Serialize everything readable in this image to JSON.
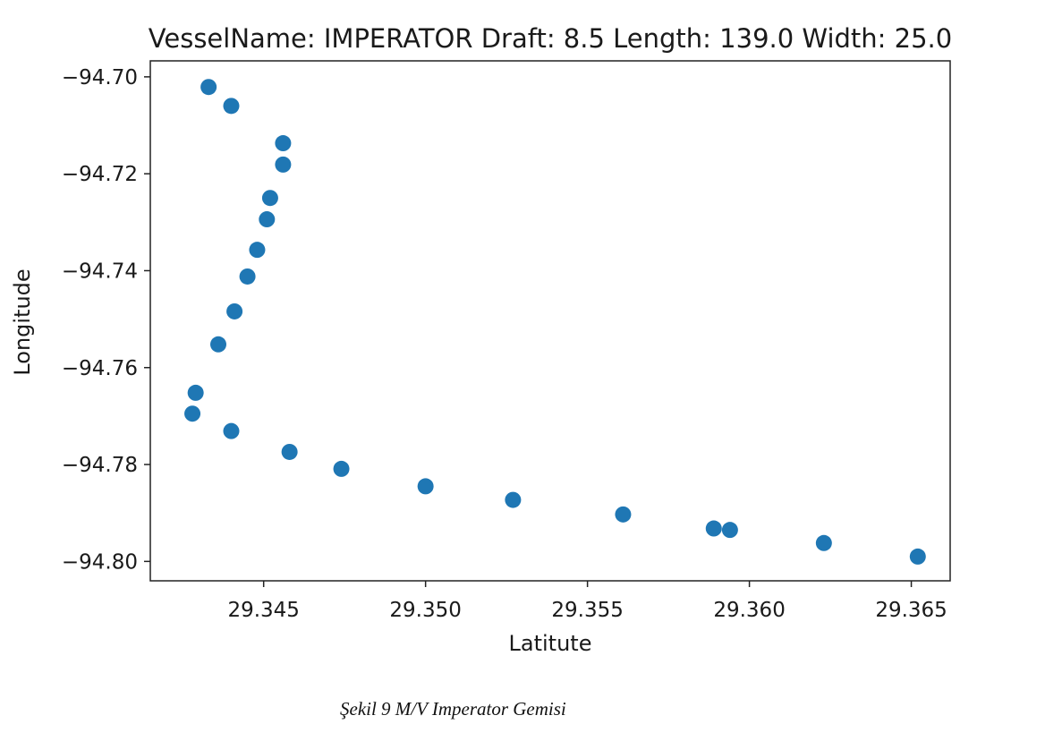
{
  "chart_data": {
    "type": "scatter",
    "title": "VesselName: IMPERATOR Draft: 8.5 Length: 139.0 Width: 25.0",
    "xlabel": "Latitute",
    "ylabel": "Longitude",
    "xlim": [
      29.3415,
      29.3662
    ],
    "ylim": [
      -94.804,
      -94.6967
    ],
    "xticks": [
      29.345,
      29.35,
      29.355,
      29.36,
      29.365
    ],
    "xtick_labels": [
      "29.345",
      "29.350",
      "29.355",
      "29.360",
      "29.365"
    ],
    "yticks": [
      -94.7,
      -94.72,
      -94.74,
      -94.76,
      -94.78,
      -94.8
    ],
    "ytick_labels": [
      "−94.70",
      "−94.72",
      "−94.74",
      "−94.76",
      "−94.78",
      "−94.80"
    ],
    "grid": false,
    "color": "#1f77b4",
    "points": [
      {
        "x": 29.3433,
        "y": -94.7021
      },
      {
        "x": 29.344,
        "y": -94.706
      },
      {
        "x": 29.3456,
        "y": -94.7137
      },
      {
        "x": 29.3456,
        "y": -94.7181
      },
      {
        "x": 29.3452,
        "y": -94.725
      },
      {
        "x": 29.3451,
        "y": -94.7294
      },
      {
        "x": 29.3448,
        "y": -94.7357
      },
      {
        "x": 29.3445,
        "y": -94.7412
      },
      {
        "x": 29.3441,
        "y": -94.7484
      },
      {
        "x": 29.3436,
        "y": -94.7552
      },
      {
        "x": 29.3429,
        "y": -94.7652
      },
      {
        "x": 29.3428,
        "y": -94.7695
      },
      {
        "x": 29.344,
        "y": -94.7731
      },
      {
        "x": 29.3458,
        "y": -94.7774
      },
      {
        "x": 29.3474,
        "y": -94.7809
      },
      {
        "x": 29.35,
        "y": -94.7845
      },
      {
        "x": 29.3527,
        "y": -94.7873
      },
      {
        "x": 29.3561,
        "y": -94.7903
      },
      {
        "x": 29.3589,
        "y": -94.7932
      },
      {
        "x": 29.3594,
        "y": -94.7935
      },
      {
        "x": 29.3623,
        "y": -94.7962
      },
      {
        "x": 29.3652,
        "y": -94.799
      }
    ]
  },
  "caption": "Şekil 9  M/V Imperator Gemisi"
}
